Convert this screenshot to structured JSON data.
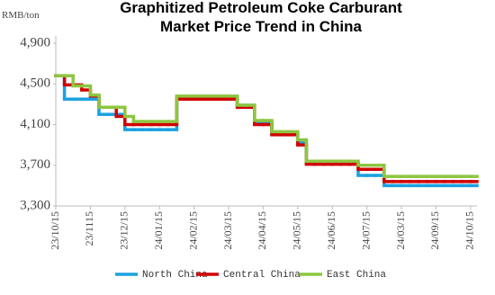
{
  "chart_data": {
    "type": "step-line",
    "title": "Graphitized Petroleum Coke Carburant Market Price Trend in China",
    "y_label": "RMB/ton",
    "categories": [
      "23/10/15",
      null,
      null,
      null,
      "23/1115",
      null,
      null,
      null,
      "23/12/15",
      null,
      null,
      null,
      "24/01/15",
      null,
      null,
      null,
      "24/02/15",
      null,
      null,
      null,
      "24/03/15",
      null,
      null,
      null,
      "24/04/15",
      null,
      null,
      null,
      "24/05/15",
      null,
      null,
      null,
      "24/06/15",
      null,
      null,
      null,
      "24/07/15",
      null,
      null,
      null,
      "24/03/15",
      null,
      null,
      null,
      "24/09/15",
      null,
      null,
      null,
      "24/10/15"
    ],
    "ylim": [
      3300,
      4900
    ],
    "yticks": [
      {
        "value": 3300,
        "label": "3,300"
      },
      {
        "value": 3700,
        "label": "3,700"
      },
      {
        "value": 4100,
        "label": "4,100"
      },
      {
        "value": 4500,
        "label": "4,500"
      },
      {
        "value": 4900,
        "label": "4,900"
      }
    ],
    "series": [
      {
        "name": "North China",
        "color": "#1ba1e2",
        "values": [
          4580,
          4350,
          4350,
          4350,
          4350,
          4200,
          4200,
          4200,
          4050,
          4050,
          4050,
          4050,
          4050,
          4050,
          4370,
          4370,
          4370,
          4370,
          4370,
          4370,
          4370,
          4290,
          4290,
          4120,
          4120,
          4010,
          4010,
          4010,
          3920,
          3720,
          3720,
          3720,
          3720,
          3720,
          3720,
          3600,
          3600,
          3600,
          3500,
          3500,
          3500,
          3500,
          3500,
          3500,
          3500,
          3500,
          3500,
          3500,
          3500
        ]
      },
      {
        "name": "Central China",
        "color": "#d10000",
        "values": [
          4580,
          4490,
          4490,
          4440,
          4380,
          4270,
          4270,
          4180,
          4100,
          4100,
          4100,
          4100,
          4100,
          4100,
          4350,
          4350,
          4350,
          4350,
          4350,
          4350,
          4350,
          4270,
          4270,
          4100,
          4100,
          4000,
          4000,
          4000,
          3900,
          3710,
          3710,
          3710,
          3710,
          3710,
          3710,
          3660,
          3660,
          3660,
          3540,
          3540,
          3540,
          3540,
          3540,
          3540,
          3540,
          3540,
          3540,
          3540,
          3540
        ]
      },
      {
        "name": "East China",
        "color": "#8dc63f",
        "values": [
          4580,
          4580,
          4480,
          4480,
          4390,
          4270,
          4270,
          4270,
          4180,
          4130,
          4130,
          4130,
          4130,
          4130,
          4380,
          4380,
          4380,
          4380,
          4380,
          4380,
          4380,
          4290,
          4290,
          4140,
          4140,
          4030,
          4030,
          4030,
          3950,
          3740,
          3740,
          3740,
          3740,
          3740,
          3740,
          3700,
          3700,
          3700,
          3590,
          3590,
          3590,
          3590,
          3590,
          3590,
          3590,
          3590,
          3590,
          3590,
          3590
        ]
      }
    ]
  }
}
